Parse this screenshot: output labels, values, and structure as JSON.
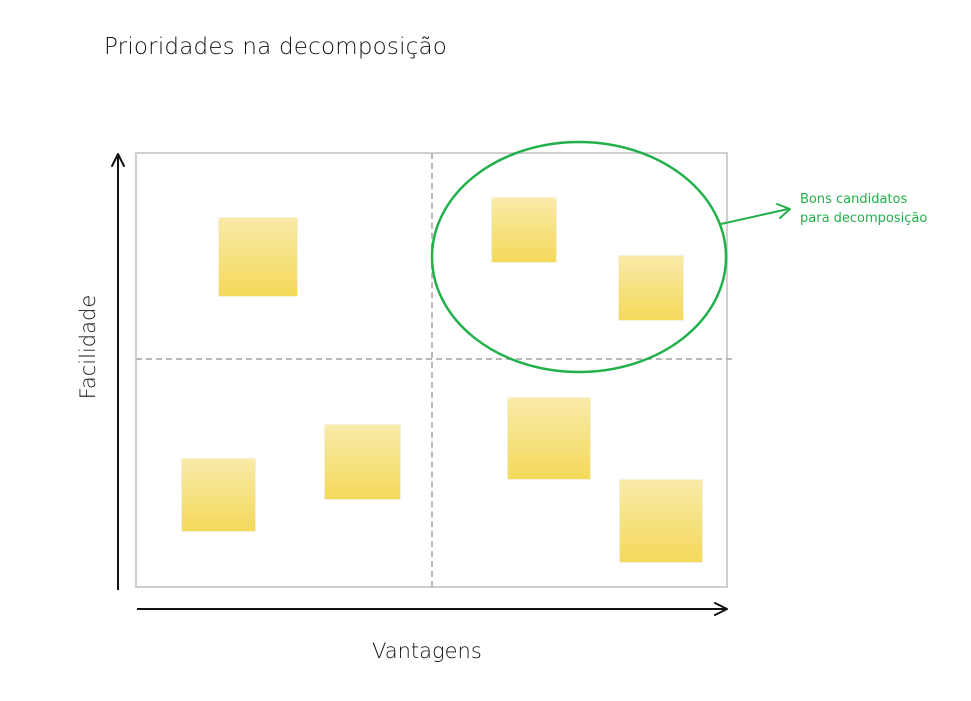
{
  "title": "Prioridades na decomposição",
  "axes": {
    "y_label": "Facilidade",
    "x_label": "Vantagens"
  },
  "annotation": {
    "line1": "Bons candidatos",
    "line2": "para decomposição",
    "color": "#22b04a"
  },
  "colors": {
    "sticky_top": "#f8eaa9",
    "sticky_bottom": "#f4d95a",
    "grid_border": "#cfcfcf",
    "divider": "#b8b8b8",
    "axis": "#111111"
  }
}
